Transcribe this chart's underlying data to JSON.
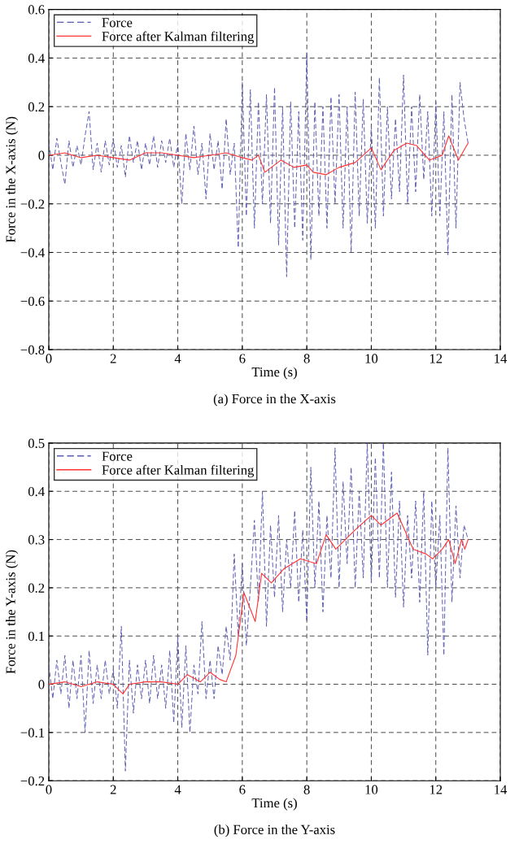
{
  "chart_data": [
    {
      "type": "line",
      "title": "(a) Force in the X-axis",
      "xlabel": "Time (s)",
      "ylabel": "Force in the X-axis (N)",
      "xlim": [
        0,
        14
      ],
      "xticks": [
        0,
        2,
        4,
        6,
        8,
        10,
        12,
        14
      ],
      "ylim": [
        -0.8,
        0.6
      ],
      "yticks": [
        {
          "value": -0.8,
          "label": "−0.8"
        },
        {
          "value": -0.6,
          "label": "−0.6"
        },
        {
          "value": -0.4,
          "label": "−0.4"
        },
        {
          "value": -0.2,
          "label": "−0.2"
        },
        0,
        0.2,
        0.4,
        0.6
      ],
      "grid": true,
      "legend": "top left",
      "marker": "none",
      "series": [
        {
          "name": "Force",
          "color": "#5a5ab0",
          "line_style": "dashed",
          "x": [
            0,
            0.125,
            0.25,
            0.375,
            0.5,
            0.625,
            0.75,
            0.875,
            1,
            1.125,
            1.25,
            1.375,
            1.5,
            1.625,
            1.75,
            1.875,
            2,
            2.125,
            2.25,
            2.375,
            2.5,
            2.625,
            2.75,
            2.875,
            3,
            3.125,
            3.25,
            3.375,
            3.5,
            3.625,
            3.75,
            3.875,
            4,
            4.125,
            4.25,
            4.375,
            4.5,
            4.625,
            4.75,
            4.875,
            5,
            5.125,
            5.25,
            5.375,
            5.5,
            5.625,
            5.75,
            5.875,
            6,
            6.125,
            6.25,
            6.375,
            6.5,
            6.625,
            6.75,
            6.875,
            7,
            7.125,
            7.25,
            7.375,
            7.5,
            7.625,
            7.75,
            7.875,
            8,
            8.125,
            8.25,
            8.375,
            8.5,
            8.625,
            8.75,
            8.875,
            9,
            9.125,
            9.25,
            9.375,
            9.5,
            9.625,
            9.75,
            9.875,
            10,
            10.125,
            10.25,
            10.375,
            10.5,
            10.625,
            10.75,
            10.875,
            11,
            11.125,
            11.25,
            11.375,
            11.5,
            11.625,
            11.75,
            11.875,
            12,
            12.125,
            12.25,
            12.375,
            12.5,
            12.625,
            12.75,
            12.875,
            13
          ],
          "values": [
            0.05,
            -0.06,
            0.07,
            -0.03,
            -0.12,
            0.06,
            -0.05,
            0.04,
            -0.04,
            0.08,
            0.18,
            -0.06,
            0.05,
            -0.07,
            0.06,
            -0.04,
            0.07,
            -0.05,
            0.04,
            -0.09,
            0.08,
            -0.03,
            0.06,
            -0.06,
            0.05,
            -0.04,
            0.08,
            -0.05,
            0.06,
            -0.03,
            0.07,
            -0.05,
            0.05,
            -0.2,
            0.09,
            -0.06,
            0.12,
            -0.08,
            0.05,
            -0.18,
            0.09,
            -0.06,
            0.06,
            -0.14,
            0.15,
            -0.08,
            0.05,
            -0.38,
            0.3,
            -0.25,
            0.27,
            -0.3,
            0.22,
            -0.2,
            0.25,
            -0.28,
            0.28,
            -0.37,
            0.2,
            -0.5,
            0.22,
            -0.3,
            0.18,
            -0.35,
            0.42,
            -0.43,
            0.22,
            -0.25,
            0.2,
            -0.3,
            0.24,
            -0.2,
            0.25,
            -0.3,
            0.2,
            -0.4,
            0.26,
            -0.25,
            0.23,
            -0.28,
            0.12,
            -0.3,
            0.32,
            -0.25,
            0.2,
            -0.18,
            0.15,
            -0.15,
            0.33,
            -0.2,
            0.2,
            -0.15,
            0.25,
            -0.1,
            0.18,
            -0.25,
            0.22,
            -0.25,
            0.18,
            -0.41,
            0.25,
            -0.3,
            0.3,
            0.15,
            0.05
          ]
        },
        {
          "name": "Force after Kalman filtering",
          "color": "#ff3333",
          "line_style": "solid",
          "x": [
            0,
            0.5,
            1,
            1.5,
            2,
            2.5,
            3,
            3.5,
            4,
            4.5,
            5,
            5.5,
            6,
            6.3,
            6.5,
            6.7,
            7,
            7.2,
            7.6,
            8,
            8.2,
            8.6,
            9,
            9.5,
            10,
            10.3,
            10.7,
            11.1,
            11.4,
            11.8,
            12.2,
            12.4,
            12.7,
            13
          ],
          "values": [
            0,
            0.01,
            -0.01,
            0,
            -0.01,
            -0.02,
            0.01,
            0.01,
            0,
            -0.01,
            0,
            0.01,
            -0.01,
            -0.02,
            0,
            -0.07,
            -0.04,
            -0.02,
            -0.05,
            -0.04,
            -0.07,
            -0.08,
            -0.05,
            -0.03,
            0.03,
            -0.06,
            0.02,
            0.05,
            0.04,
            -0.02,
            0,
            0.08,
            -0.02,
            0.05
          ]
        }
      ]
    },
    {
      "type": "line",
      "title": "(b) Force in the Y-axis",
      "xlabel": "Time (s)",
      "ylabel": "Force in the Y-axis (N)",
      "xlim": [
        0,
        14
      ],
      "xticks": [
        0,
        2,
        4,
        6,
        8,
        10,
        12,
        14
      ],
      "ylim": [
        -0.2,
        0.5
      ],
      "yticks": [
        {
          "value": -0.2,
          "label": "−0.2"
        },
        {
          "value": -0.1,
          "label": "−0.1"
        },
        0,
        0.1,
        0.2,
        0.3,
        0.4,
        0.5
      ],
      "grid": true,
      "legend": "top left",
      "marker": "none",
      "series": [
        {
          "name": "Force",
          "color": "#5a5ab0",
          "line_style": "dashed",
          "x": [
            0,
            0.125,
            0.25,
            0.375,
            0.5,
            0.625,
            0.75,
            0.875,
            1,
            1.125,
            1.25,
            1.375,
            1.5,
            1.625,
            1.75,
            1.875,
            2,
            2.125,
            2.25,
            2.375,
            2.5,
            2.625,
            2.75,
            2.875,
            3,
            3.125,
            3.25,
            3.375,
            3.5,
            3.625,
            3.75,
            3.875,
            4,
            4.125,
            4.25,
            4.375,
            4.5,
            4.625,
            4.75,
            4.875,
            5,
            5.125,
            5.25,
            5.375,
            5.5,
            5.625,
            5.75,
            5.875,
            6,
            6.125,
            6.25,
            6.375,
            6.5,
            6.625,
            6.75,
            6.875,
            7,
            7.125,
            7.25,
            7.375,
            7.5,
            7.625,
            7.75,
            7.875,
            8,
            8.125,
            8.25,
            8.375,
            8.5,
            8.625,
            8.75,
            8.875,
            9,
            9.125,
            9.25,
            9.375,
            9.5,
            9.625,
            9.75,
            9.875,
            10,
            10.125,
            10.25,
            10.375,
            10.5,
            10.625,
            10.75,
            10.875,
            11,
            11.125,
            11.25,
            11.375,
            11.5,
            11.625,
            11.75,
            11.875,
            12,
            12.125,
            12.25,
            12.375,
            12.5,
            12.625,
            12.75,
            12.875,
            13
          ],
          "values": [
            0.04,
            -0.03,
            0.05,
            -0.02,
            0.06,
            -0.05,
            0.05,
            -0.03,
            0.06,
            -0.1,
            0.07,
            -0.04,
            0.04,
            -0.03,
            0.05,
            -0.02,
            0.03,
            -0.05,
            0.12,
            -0.18,
            0.05,
            -0.06,
            0.04,
            -0.03,
            0.05,
            -0.04,
            0.06,
            -0.03,
            0.04,
            -0.05,
            0.07,
            -0.08,
            0.1,
            -0.09,
            0.08,
            -0.1,
            0.04,
            -0.02,
            0.13,
            -0.03,
            0.05,
            -0.03,
            0.08,
            0.02,
            0.12,
            0.05,
            0.27,
            0.1,
            0.25,
            0.08,
            0.2,
            0.34,
            0.17,
            0.4,
            0.12,
            0.33,
            0.18,
            0.35,
            0.15,
            0.3,
            0.2,
            0.36,
            0.17,
            0.32,
            0.13,
            0.45,
            0.2,
            0.38,
            0.15,
            0.35,
            0.22,
            0.49,
            0.2,
            0.42,
            0.25,
            0.45,
            0.2,
            0.4,
            0.22,
            0.5,
            0.21,
            0.47,
            0.22,
            0.5,
            0.2,
            0.44,
            0.18,
            0.38,
            0.16,
            0.35,
            0.22,
            0.38,
            0.17,
            0.4,
            0.06,
            0.38,
            0.2,
            0.35,
            0.06,
            0.49,
            0.17,
            0.37,
            0.22,
            0.33,
            0.3
          ]
        },
        {
          "name": "Force after Kalman filtering",
          "color": "#ff3333",
          "line_style": "solid",
          "x": [
            0,
            0.5,
            1,
            1.5,
            2,
            2.3,
            2.5,
            3,
            3.5,
            4,
            4.3,
            4.7,
            5,
            5.3,
            5.5,
            5.8,
            6.05,
            6.4,
            6.6,
            6.9,
            7.3,
            7.8,
            8.3,
            8.6,
            8.9,
            9.5,
            10,
            10.3,
            10.8,
            11.3,
            11.7,
            11.9,
            12.2,
            12.4,
            12.6,
            12.8,
            12.9,
            13
          ],
          "values": [
            0,
            0.005,
            -0.005,
            0.005,
            0,
            -0.02,
            0,
            0.005,
            0.005,
            0,
            0.02,
            0.005,
            0.025,
            0.01,
            0.005,
            0.06,
            0.19,
            0.13,
            0.23,
            0.21,
            0.24,
            0.26,
            0.25,
            0.31,
            0.28,
            0.32,
            0.35,
            0.33,
            0.355,
            0.28,
            0.27,
            0.26,
            0.28,
            0.3,
            0.25,
            0.3,
            0.28,
            0.3
          ]
        }
      ]
    }
  ]
}
